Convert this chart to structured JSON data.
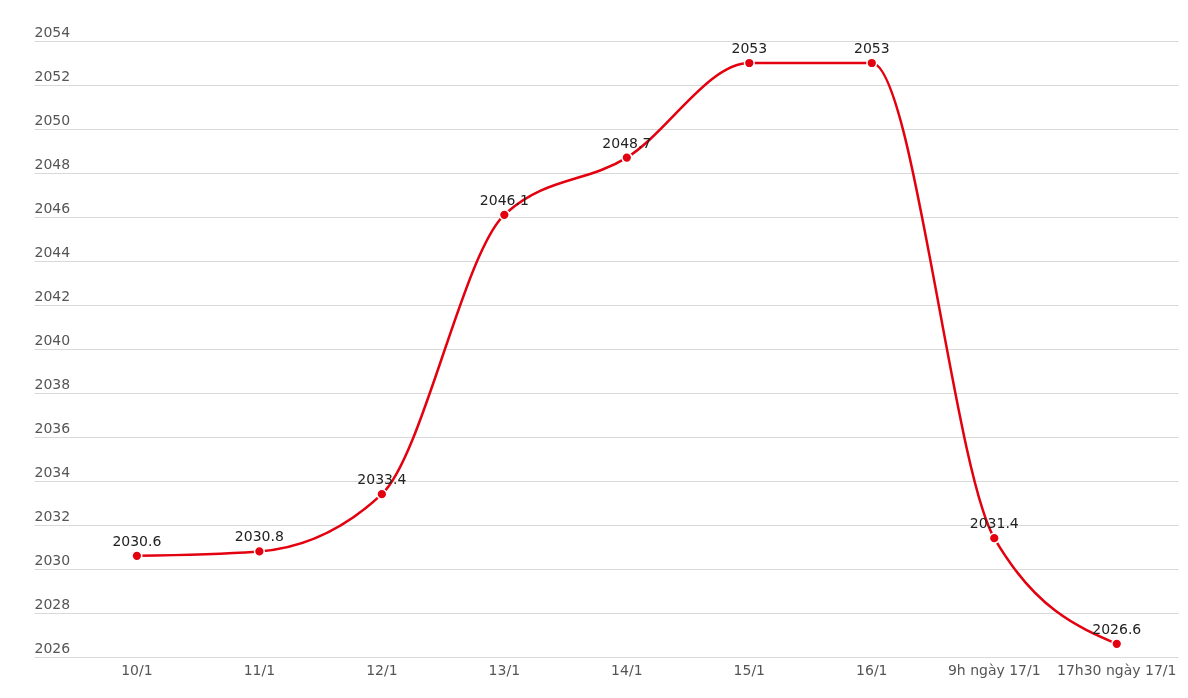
{
  "chart_data": {
    "type": "line",
    "categories": [
      "10/1",
      "11/1",
      "12/1",
      "13/1",
      "14/1",
      "15/1",
      "16/1",
      "9h ngày 17/1",
      "17h30 ngày 17/1"
    ],
    "series": [
      {
        "color": "#e3000f",
        "values": [
          2030.6,
          2030.8,
          2033.4,
          2046.1,
          2048.7,
          2053,
          2053,
          2031.4,
          2026.6
        ]
      }
    ],
    "ylim": [
      2026,
      2054
    ],
    "yticks": [
      2026,
      2028,
      2030,
      2032,
      2034,
      2036,
      2038,
      2040,
      2042,
      2044,
      2046,
      2048,
      2050,
      2052,
      2054
    ],
    "grid": "y",
    "marker": "circle",
    "line_style": "solid",
    "data_labels": true
  }
}
